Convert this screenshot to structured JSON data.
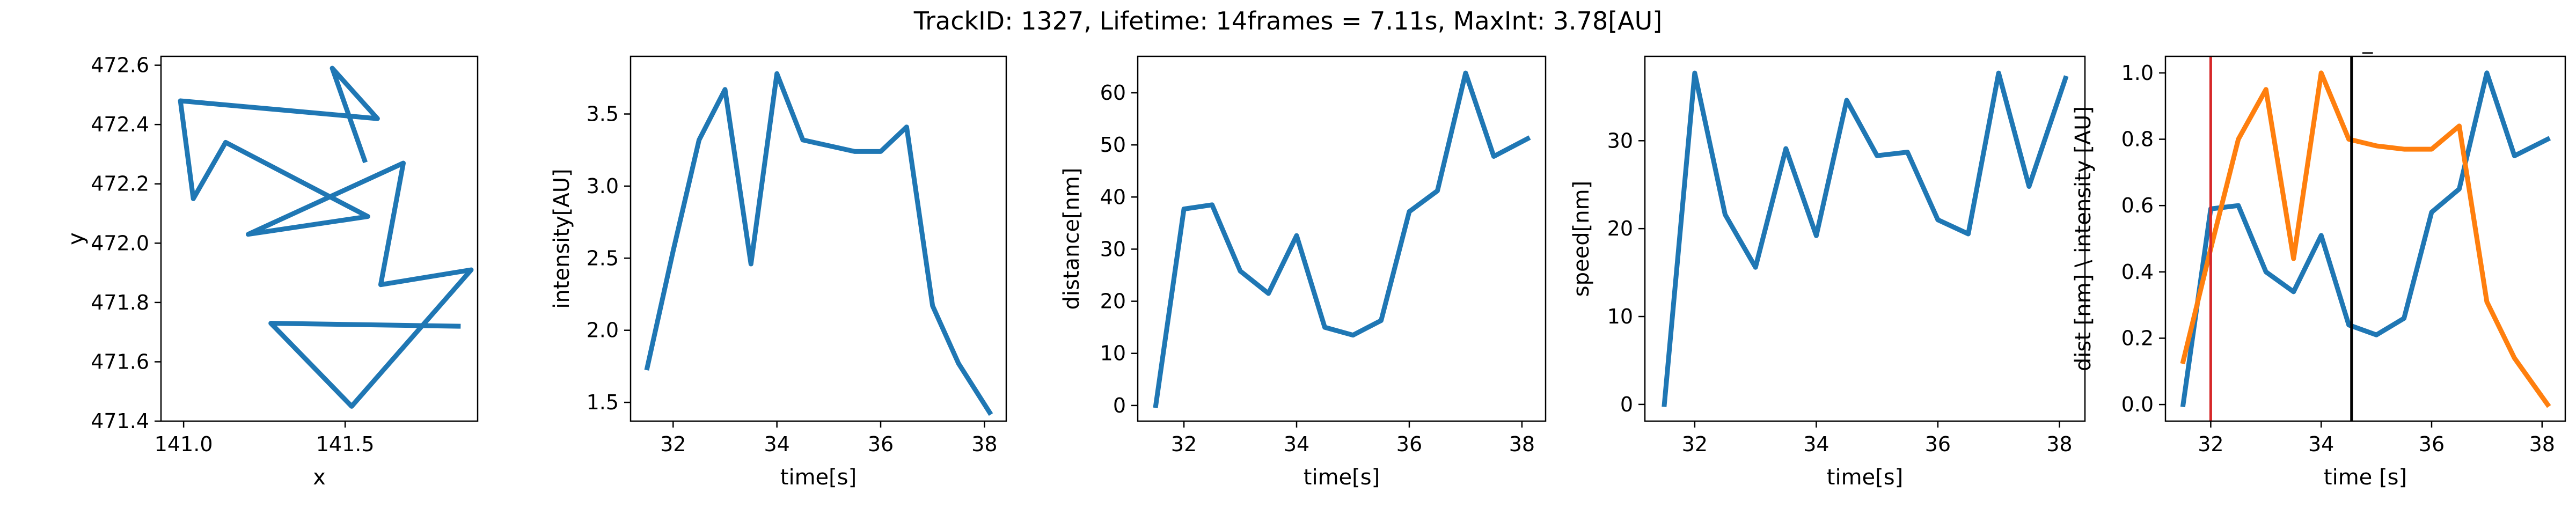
{
  "figure": {
    "title": "TrackID: 1327, Lifetime: 14frames = 7.11s, MaxInt: 3.78[AU]"
  },
  "chart_data": [
    {
      "type": "line",
      "xlabel": "x",
      "ylabel": "y",
      "xlim": [
        140.93,
        141.91
      ],
      "ylim": [
        471.4,
        472.63
      ],
      "xticks": [
        141.0,
        141.5
      ],
      "xtick_labels": [
        "141.0",
        "141.5"
      ],
      "yticks": [
        471.4,
        471.6,
        471.8,
        472.0,
        472.2,
        472.4,
        472.6
      ],
      "ytick_labels": [
        "471.4",
        "471.6",
        "471.8",
        "472.0",
        "472.2",
        "472.4",
        "472.6"
      ],
      "series": [
        {
          "color": "#1f77b4",
          "x": [
            141.85,
            141.27,
            141.52,
            141.89,
            141.61,
            141.68,
            141.2,
            141.57,
            141.13,
            141.03,
            140.99,
            141.6,
            141.46,
            141.56
          ],
          "y": [
            471.72,
            471.73,
            471.45,
            471.91,
            471.86,
            472.27,
            472.03,
            472.09,
            472.34,
            472.15,
            472.48,
            472.42,
            472.59,
            472.28
          ]
        }
      ]
    },
    {
      "type": "line",
      "xlabel": "time[s]",
      "ylabel": "intensity[AU]",
      "xlim": [
        31.18,
        38.42
      ],
      "ylim": [
        1.37,
        3.9
      ],
      "xticks": [
        32,
        34,
        36,
        38
      ],
      "xtick_labels": [
        "32",
        "34",
        "36",
        "38"
      ],
      "yticks": [
        1.5,
        2.0,
        2.5,
        3.0,
        3.5
      ],
      "ytick_labels": [
        "1.5",
        "2.0",
        "2.5",
        "3.0",
        "3.5"
      ],
      "series": [
        {
          "color": "#1f77b4",
          "x": [
            31.5,
            32.0,
            32.5,
            33.0,
            33.5,
            34.0,
            34.5,
            35.0,
            35.5,
            36.0,
            36.5,
            37.0,
            37.5,
            38.1
          ],
          "y": [
            1.74,
            2.55,
            3.32,
            3.67,
            2.46,
            3.78,
            3.32,
            3.28,
            3.24,
            3.24,
            3.41,
            2.17,
            1.77,
            1.43
          ]
        }
      ]
    },
    {
      "type": "line",
      "xlabel": "time[s]",
      "ylabel": "distance[nm]",
      "xlim": [
        31.18,
        38.42
      ],
      "ylim": [
        -3.0,
        67.0
      ],
      "xticks": [
        32,
        34,
        36,
        38
      ],
      "xtick_labels": [
        "32",
        "34",
        "36",
        "38"
      ],
      "yticks": [
        0,
        10,
        20,
        30,
        40,
        50,
        60
      ],
      "ytick_labels": [
        "0",
        "10",
        "20",
        "30",
        "40",
        "50",
        "60"
      ],
      "series": [
        {
          "color": "#1f77b4",
          "x": [
            31.5,
            32.0,
            32.5,
            33.0,
            33.5,
            34.0,
            34.5,
            35.0,
            35.5,
            36.0,
            36.5,
            37.0,
            37.5,
            38.1
          ],
          "y": [
            0,
            37.7,
            38.5,
            25.8,
            21.5,
            32.6,
            15.0,
            13.5,
            16.3,
            37.2,
            41.2,
            63.8,
            47.8,
            51.2
          ]
        }
      ]
    },
    {
      "type": "line",
      "xlabel": "time[s]",
      "ylabel": "speed[nm]",
      "xlim": [
        31.18,
        38.42
      ],
      "ylim": [
        -1.9,
        39.6
      ],
      "xticks": [
        32,
        34,
        36,
        38
      ],
      "xtick_labels": [
        "32",
        "34",
        "36",
        "38"
      ],
      "yticks": [
        0,
        10,
        20,
        30
      ],
      "ytick_labels": [
        "0",
        "10",
        "20",
        "30"
      ],
      "series": [
        {
          "color": "#1f77b4",
          "x": [
            31.5,
            32.0,
            32.5,
            33.0,
            33.5,
            34.0,
            34.5,
            35.0,
            35.5,
            36.0,
            36.5,
            37.0,
            37.5,
            38.1
          ],
          "y": [
            0,
            37.7,
            21.6,
            15.6,
            29.1,
            19.2,
            34.6,
            28.3,
            28.7,
            21.0,
            19.4,
            37.7,
            24.8,
            37.1
          ]
        }
      ]
    },
    {
      "type": "line",
      "title": "_",
      "xlabel": "time [s]",
      "ylabel": "dist [nm] \\ intensity [AU]",
      "xlim": [
        31.18,
        38.42
      ],
      "ylim": [
        -0.05,
        1.05
      ],
      "xticks": [
        32,
        34,
        36,
        38
      ],
      "xtick_labels": [
        "32",
        "34",
        "36",
        "38"
      ],
      "yticks": [
        0.0,
        0.2,
        0.4,
        0.6,
        0.8,
        1.0
      ],
      "ytick_labels": [
        "0.0",
        "0.2",
        "0.4",
        "0.6",
        "0.8",
        "1.0"
      ],
      "series": [
        {
          "color": "#1f77b4",
          "x": [
            31.5,
            32.0,
            32.5,
            33.0,
            33.5,
            34.0,
            34.5,
            35.0,
            35.5,
            36.0,
            36.5,
            37.0,
            37.5,
            38.1
          ],
          "y": [
            0,
            0.59,
            0.6,
            0.4,
            0.34,
            0.51,
            0.24,
            0.21,
            0.26,
            0.58,
            0.65,
            1.0,
            0.75,
            0.8
          ]
        },
        {
          "color": "#ff7f0e",
          "x": [
            31.5,
            32.0,
            32.5,
            33.0,
            33.5,
            34.0,
            34.5,
            35.0,
            35.5,
            36.0,
            36.5,
            37.0,
            37.5,
            38.1
          ],
          "y": [
            0.13,
            0.47,
            0.8,
            0.95,
            0.44,
            1.0,
            0.8,
            0.78,
            0.77,
            0.77,
            0.84,
            0.31,
            0.14,
            0.0
          ]
        }
      ],
      "vlines": [
        {
          "x": 32.0,
          "color": "#d62728"
        },
        {
          "x": 34.55,
          "color": "#000000"
        }
      ]
    }
  ]
}
